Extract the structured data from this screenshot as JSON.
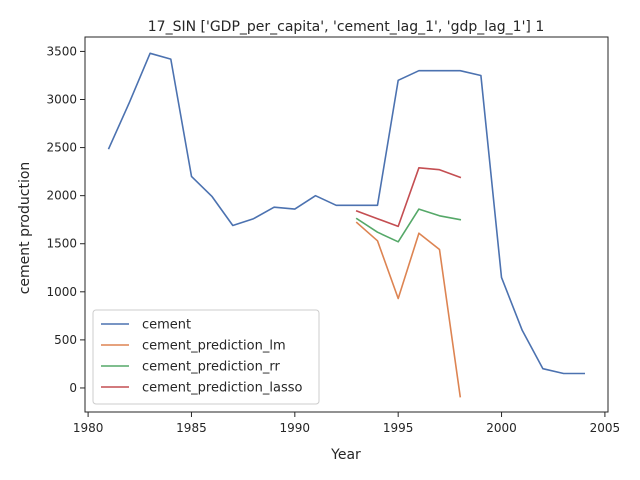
{
  "chart_data": {
    "type": "line",
    "title": "17_SIN ['GDP_per_capita', 'cement_lag_1', 'gdp_lag_1'] 1",
    "xlabel": "Year",
    "ylabel": "cement production",
    "xlim": [
      1979.85,
      2005.15
    ],
    "ylim": [
      -250,
      3650
    ],
    "xticks": [
      1980,
      1985,
      1990,
      1995,
      2000,
      2005
    ],
    "yticks": [
      0,
      500,
      1000,
      1500,
      2000,
      2500,
      3000,
      3500
    ],
    "grid": false,
    "legend_position": "lower-left",
    "series": [
      {
        "name": "cement",
        "color": "#4c72b0",
        "x": [
          1981,
          1982,
          1983,
          1984,
          1985,
          1986,
          1987,
          1988,
          1989,
          1990,
          1991,
          1992,
          1993,
          1994,
          1995,
          1996,
          1997,
          1998,
          1999,
          2000,
          2001,
          2002,
          2003,
          2004
        ],
        "y": [
          2490,
          2970,
          3480,
          3420,
          2200,
          1990,
          1690,
          1760,
          1880,
          1860,
          2000,
          1900,
          1900,
          1900,
          3200,
          3300,
          3300,
          3300,
          3250,
          1150,
          600,
          200,
          150,
          150
        ]
      },
      {
        "name": "cement_prediction_lm",
        "color": "#dd8452",
        "x": [
          1993,
          1994,
          1995,
          1996,
          1997,
          1998
        ],
        "y": [
          1720,
          1530,
          930,
          1610,
          1440,
          -90
        ]
      },
      {
        "name": "cement_prediction_rr",
        "color": "#55a868",
        "x": [
          1993,
          1994,
          1995,
          1996,
          1997,
          1998
        ],
        "y": [
          1760,
          1620,
          1520,
          1860,
          1790,
          1750
        ]
      },
      {
        "name": "cement_prediction_lasso",
        "color": "#c44e52",
        "x": [
          1993,
          1994,
          1995,
          1996,
          1997,
          1998
        ],
        "y": [
          1840,
          1760,
          1680,
          2290,
          2270,
          2190
        ]
      }
    ]
  }
}
